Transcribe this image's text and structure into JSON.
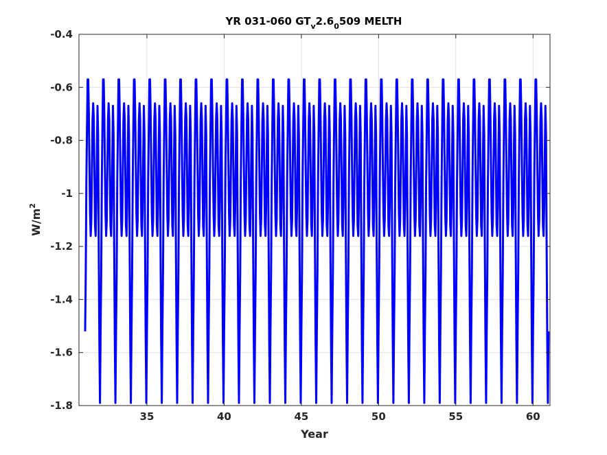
{
  "chart_data": {
    "type": "line",
    "title_parts": {
      "a": "YR 031-060 GT",
      "sub1": "v",
      "b": "2.6",
      "sub2": "0",
      "c": "509 MELTH"
    },
    "xlabel": "Year",
    "ylabel_base": "W/m",
    "ylabel_sup": "2",
    "xlim": [
      30.6,
      61.1
    ],
    "ylim": [
      -1.8,
      -0.4
    ],
    "xticks": [
      35,
      40,
      45,
      50,
      55,
      60
    ],
    "yticks": [
      -1.8,
      -1.6,
      -1.4,
      -1.2,
      -1,
      -0.8,
      -0.6,
      -0.4
    ],
    "grid": true,
    "series": [
      {
        "color": "#0000ff",
        "x_start": 31.0,
        "x_end": 61.0,
        "period_years": 1,
        "cycle_shape": [
          [
            0.0,
            -1.52
          ],
          [
            0.04,
            -1.3
          ],
          [
            0.08,
            -0.95
          ],
          [
            0.12,
            -0.75
          ],
          [
            0.16,
            -0.57
          ],
          [
            0.2,
            -0.57
          ],
          [
            0.24,
            -0.7
          ],
          [
            0.28,
            -0.9
          ],
          [
            0.32,
            -1.08
          ],
          [
            0.36,
            -1.16
          ],
          [
            0.4,
            -1.1
          ],
          [
            0.44,
            -0.9
          ],
          [
            0.48,
            -0.72
          ],
          [
            0.52,
            -0.66
          ],
          [
            0.56,
            -0.72
          ],
          [
            0.6,
            -0.92
          ],
          [
            0.64,
            -1.12
          ],
          [
            0.68,
            -1.16
          ],
          [
            0.72,
            -1.05
          ],
          [
            0.76,
            -0.85
          ],
          [
            0.8,
            -0.67
          ],
          [
            0.84,
            -0.78
          ],
          [
            0.88,
            -1.2
          ],
          [
            0.92,
            -1.55
          ],
          [
            0.96,
            -1.79
          ],
          [
            1.0,
            -1.52
          ]
        ]
      }
    ]
  }
}
